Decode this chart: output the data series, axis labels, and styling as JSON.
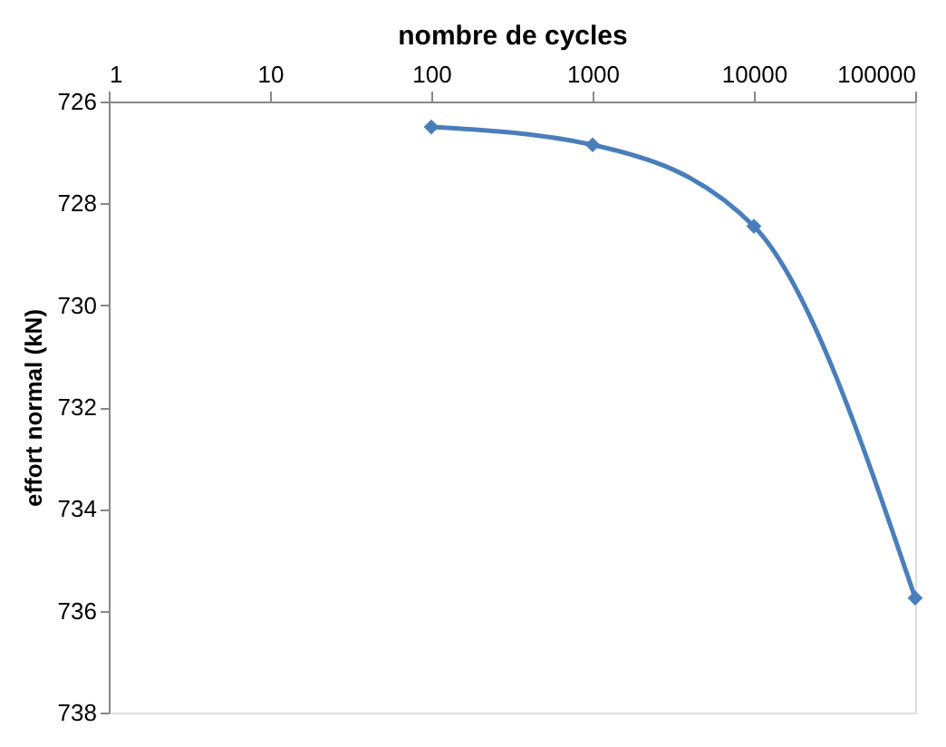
{
  "chart_data": {
    "type": "line",
    "xlabel": "nombre de cycles",
    "ylabel": "effort normal (kN)",
    "x": [
      100,
      1000,
      10000,
      100000
    ],
    "series": [
      {
        "color": "#4a7ebb",
        "values": [
          726.5,
          726.85,
          728.45,
          735.75
        ]
      }
    ],
    "log": "x",
    "xlim": [
      1,
      100000
    ],
    "xticks": [
      1,
      10,
      100,
      1000,
      10000,
      100000
    ],
    "ylim": [
      738,
      726
    ],
    "yticks": [
      726,
      728,
      730,
      732,
      734,
      736,
      738
    ],
    "grid": false,
    "marker": "diamond",
    "line_style": "solid"
  }
}
